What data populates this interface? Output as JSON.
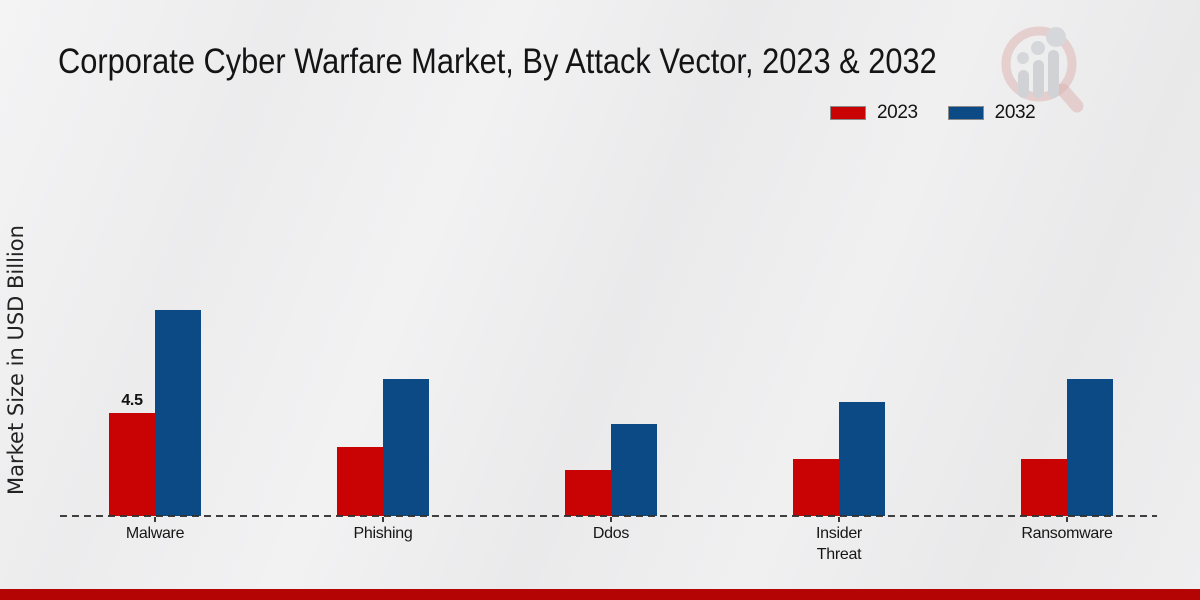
{
  "page": {
    "title": "Corporate Cyber Warfare Market, By Attack Vector, 2023 & 2032",
    "watermark_icon": "magnifier-growth-chart-logo",
    "footer_accent_color": "#b50404"
  },
  "chart_data": {
    "type": "bar",
    "title": "Corporate Cyber Warfare Market, By Attack Vector, 2023 & 2032",
    "xlabel": "",
    "ylabel": "Market Size in USD Billion",
    "categories": [
      "Malware",
      "Phishing",
      "Ddos",
      "Insider Threat",
      "Ransomware"
    ],
    "tick_labels": [
      "Malware",
      "Phishing",
      "Ddos",
      "Insider\nThreat",
      "Ransomware"
    ],
    "series": [
      {
        "name": "2023",
        "color": "#c90303",
        "values": [
          4.5,
          3.0,
          2.0,
          2.5,
          2.5
        ]
      },
      {
        "name": "2032",
        "color": "#0c4a86",
        "values": [
          9.0,
          6.0,
          4.0,
          5.0,
          6.0
        ]
      }
    ],
    "data_labels": [
      {
        "series": "2023",
        "category": "Malware",
        "text": "4.5"
      }
    ],
    "ylim": [
      0,
      10.5
    ],
    "grid": false,
    "legend_position": "top-right",
    "axis_line_style": "dashed"
  }
}
